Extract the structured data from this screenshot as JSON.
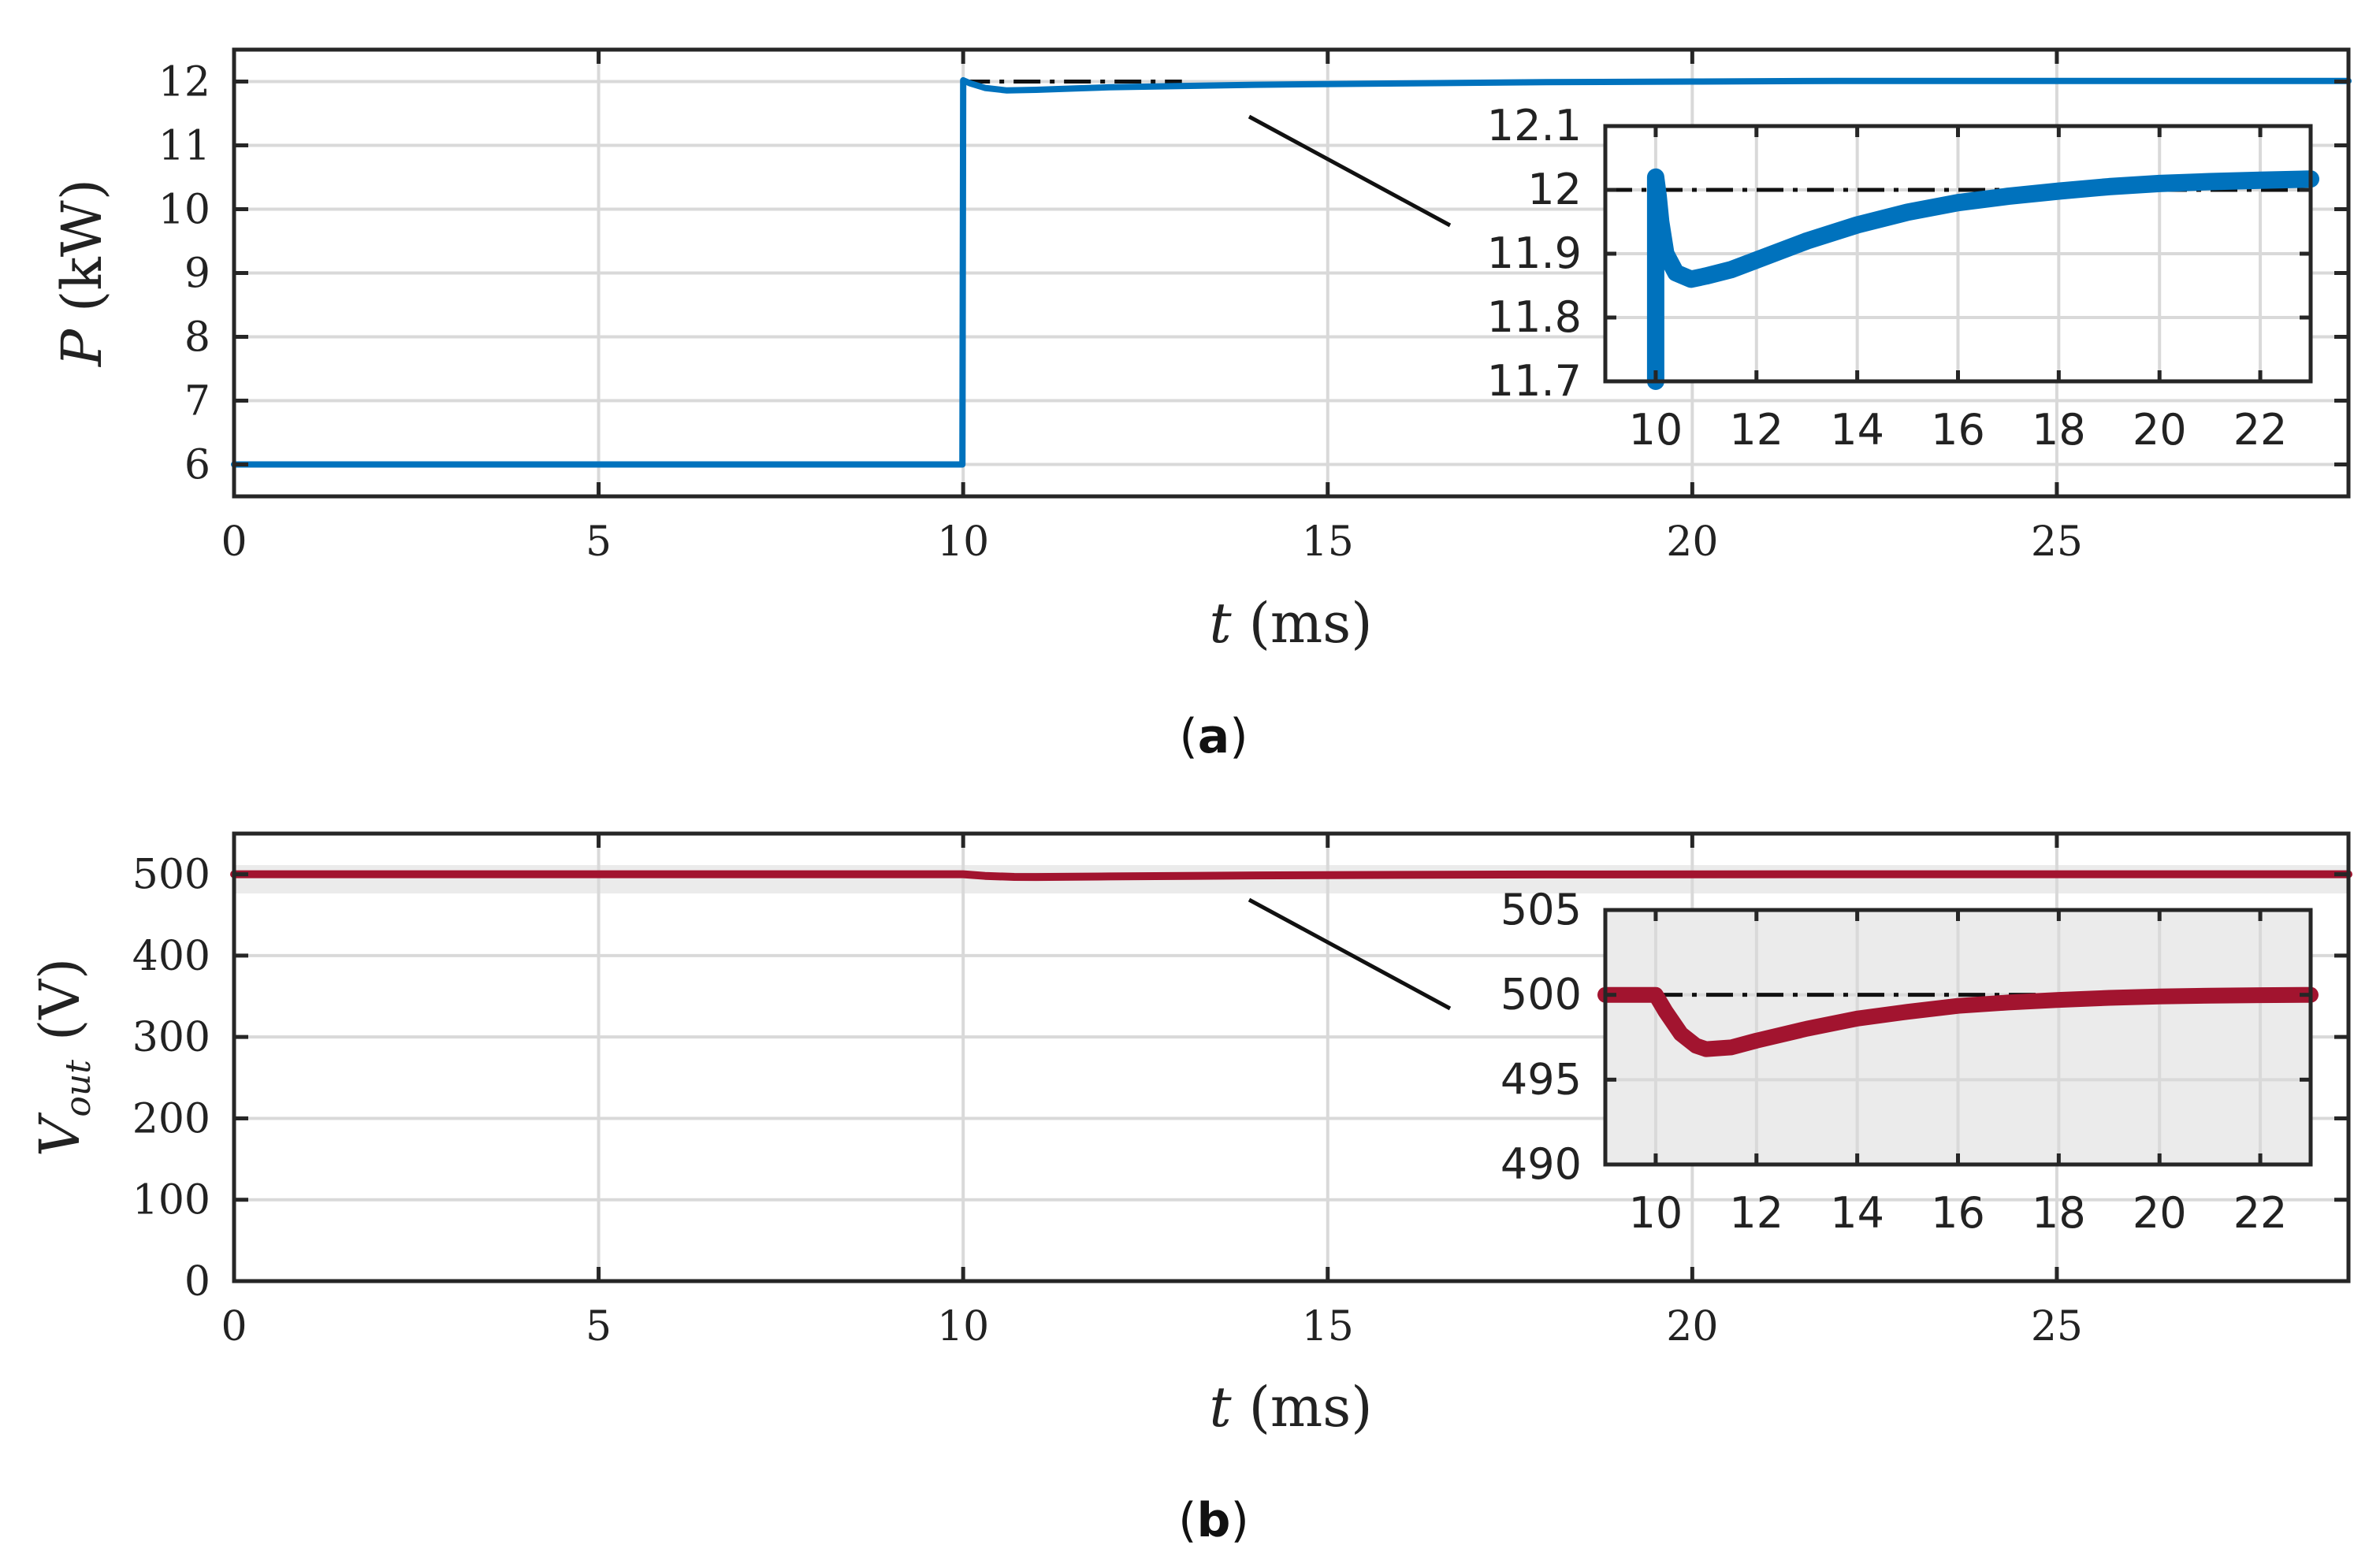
{
  "chart_data": [
    {
      "type": "line",
      "caption_letter": "a",
      "xlabel": "t",
      "xlabel_unit": "(ms)",
      "ylabel": "P",
      "ylabel_unit": "(kW)",
      "xlim": [
        0,
        29
      ],
      "ylim": [
        5.5,
        12.5
      ],
      "xticks": [
        0,
        5,
        10,
        15,
        20,
        25
      ],
      "yticks": [
        6,
        7,
        8,
        9,
        10,
        11,
        12
      ],
      "color": "#0072BD",
      "reference": 12,
      "series": [
        {
          "name": "P",
          "x": [
            0,
            9.99,
            10,
            10.1,
            10.3,
            10.6,
            11,
            11.5,
            12,
            14,
            16,
            18,
            20,
            22,
            25,
            29
          ],
          "y": [
            6,
            6,
            12.02,
            11.97,
            11.9,
            11.86,
            11.87,
            11.89,
            11.91,
            11.95,
            11.97,
            11.99,
            12.0,
            12.01,
            12.01,
            12.01
          ]
        }
      ],
      "inset": {
        "xlim": [
          9,
          23
        ],
        "ylim": [
          11.7,
          12.1
        ],
        "xticks": [
          10,
          12,
          14,
          16,
          18,
          20,
          22
        ],
        "yticks": [
          11.7,
          11.8,
          11.9,
          12,
          12.1
        ],
        "series": [
          {
            "name": "P",
            "x": [
              10,
              10,
              10.05,
              10.1,
              10.2,
              10.4,
              10.7,
              11,
              11.5,
              12,
              13,
              14,
              15,
              16,
              17,
              18,
              19,
              20,
              21,
              22,
              23
            ],
            "y": [
              11.7,
              12.02,
              11.99,
              11.95,
              11.9,
              11.87,
              11.86,
              11.865,
              11.875,
              11.89,
              11.92,
              11.945,
              11.965,
              11.98,
              11.99,
              11.998,
              12.005,
              12.01,
              12.013,
              12.015,
              12.017
            ]
          }
        ]
      }
    },
    {
      "type": "line",
      "caption_letter": "b",
      "xlabel": "t",
      "xlabel_unit": "(ms)",
      "ylabel": "V",
      "ylabel_sub": "out",
      "ylabel_unit": "(V)",
      "xlim": [
        0,
        29
      ],
      "ylim": [
        0,
        550
      ],
      "xticks": [
        0,
        5,
        10,
        15,
        20,
        25
      ],
      "yticks": [
        0,
        100,
        200,
        300,
        400,
        500
      ],
      "color": "#A2142F",
      "reference": 500,
      "series": [
        {
          "name": "Vout",
          "x": [
            0,
            10,
            10.3,
            10.7,
            11,
            12,
            14,
            16,
            18,
            20,
            22,
            25,
            29
          ],
          "y": [
            500,
            500,
            498,
            496.7,
            496.6,
            497.3,
            498.6,
            499.3,
            499.7,
            499.9,
            500,
            500,
            500
          ]
        }
      ],
      "inset": {
        "xlim": [
          9,
          23
        ],
        "ylim": [
          490,
          505
        ],
        "xticks": [
          10,
          12,
          14,
          16,
          18,
          20,
          22
        ],
        "yticks": [
          490,
          495,
          500,
          505
        ],
        "series": [
          {
            "name": "Vout",
            "x": [
              9,
              10,
              10.2,
              10.5,
              10.8,
              11,
              11.5,
              12,
              13,
              14,
              15,
              16,
              17,
              18,
              19,
              20,
              21,
              22,
              23
            ],
            "y": [
              500,
              500,
              499,
              497.7,
              497,
              496.8,
              496.9,
              497.3,
              498,
              498.6,
              499,
              499.35,
              499.55,
              499.7,
              499.82,
              499.9,
              499.95,
              499.98,
              500
            ]
          }
        ]
      }
    }
  ]
}
